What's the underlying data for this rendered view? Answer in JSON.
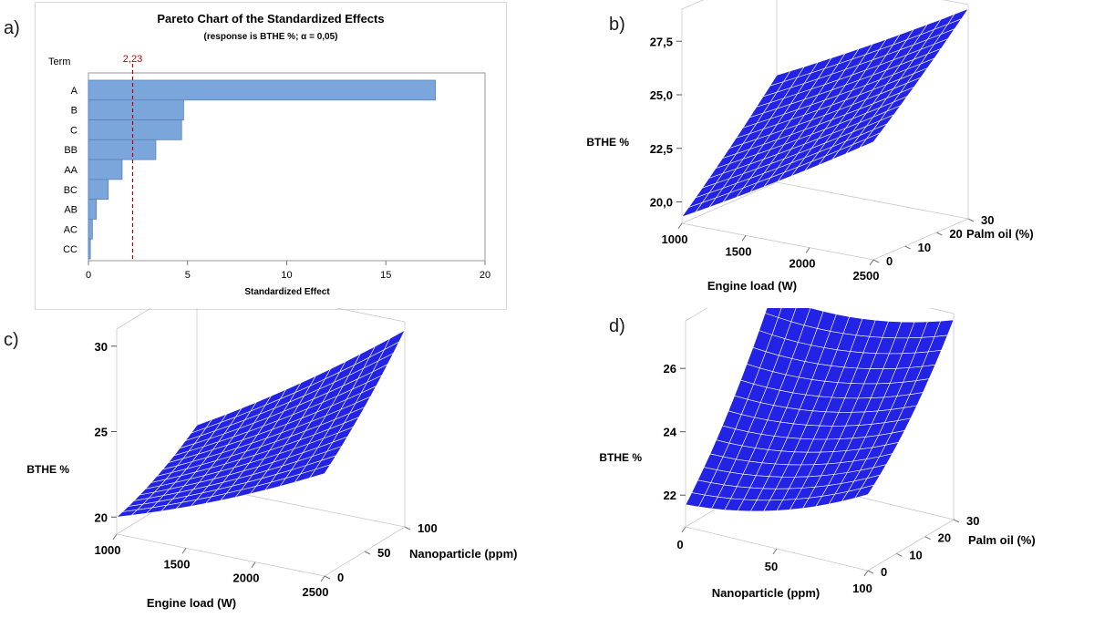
{
  "panels": {
    "a": "a)",
    "b": "b)",
    "c": "c)",
    "d": "d)"
  },
  "colors": {
    "bar_fill": "#7aa6dc",
    "bar_edge": "#5a82b8",
    "reference_line": "#c00000",
    "surface_fill": "#2323e6",
    "mesh_line": "#ffffff",
    "axis_text": "#1a1a1a"
  },
  "chart_data": [
    {
      "type": "bar",
      "orientation": "horizontal",
      "title": "Pareto Chart of the Standardized Effects",
      "subtitle": "(response is BTHE %; α = 0,05)",
      "ylabel": "Term",
      "xlabel": "Standardized Effect",
      "categories": [
        "A",
        "B",
        "C",
        "BB",
        "AA",
        "BC",
        "AB",
        "AC",
        "CC"
      ],
      "values": [
        17.5,
        4.8,
        4.7,
        3.4,
        1.7,
        1.0,
        0.4,
        0.2,
        0.1
      ],
      "xlim": [
        0,
        20
      ],
      "xticks": [
        "0",
        "5",
        "10",
        "15",
        "20"
      ],
      "reference_line": {
        "value": 2.23,
        "label": "2,23"
      },
      "grid": false,
      "legend": "none"
    },
    {
      "type": "surface",
      "zlabel": "BTHE %",
      "xlabel": "Engine load (W)",
      "ylabel": "Palm oil (%)",
      "xrange": [
        1000,
        2500
      ],
      "yrange": [
        0,
        30
      ],
      "zrange": [
        19,
        29
      ],
      "xticks": [
        "1000",
        "1500",
        "2000",
        "2500"
      ],
      "yticks": [
        "0",
        "10",
        "20",
        "30"
      ],
      "zticks": [
        "20,0",
        "22,5",
        "25,0",
        "27,5"
      ],
      "corner_values": {
        "x_low_y_low": 19.3,
        "x_low_y_high": 24.0,
        "x_high_y_low": 24.5,
        "x_high_y_high": 28.8
      }
    },
    {
      "type": "surface",
      "zlabel": "BTHE %",
      "xlabel": "Engine load (W)",
      "ylabel": "Nanoparticle (ppm)",
      "xrange": [
        1000,
        2500
      ],
      "yrange": [
        0,
        100
      ],
      "zrange": [
        19,
        31
      ],
      "xticks": [
        "1000",
        "1500",
        "2000",
        "2500"
      ],
      "yticks": [
        "0",
        "50",
        "100"
      ],
      "zticks": [
        "20",
        "25",
        "30"
      ],
      "corner_values": {
        "x_low_y_low": 20.0,
        "x_low_y_high": 22.5,
        "x_high_y_low": 25.0,
        "x_high_y_high": 30.5
      }
    },
    {
      "type": "surface",
      "zlabel": "BTHE %",
      "xlabel": "Nanoparticle (ppm)",
      "ylabel": "Palm oil (%)",
      "xrange": [
        0,
        100
      ],
      "yrange": [
        0,
        30
      ],
      "zrange": [
        21,
        27.5
      ],
      "xticks": [
        "0",
        "50",
        "100"
      ],
      "yticks": [
        "0",
        "10",
        "20",
        "30"
      ],
      "zticks": [
        "22",
        "24",
        "26"
      ],
      "corner_values": {
        "x_low_y_low": 21.7,
        "x_low_y_high": 26.7,
        "x_high_y_low": 23.4,
        "x_high_y_high": 27.3
      }
    }
  ]
}
